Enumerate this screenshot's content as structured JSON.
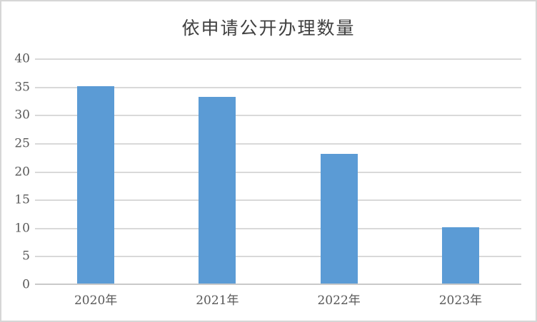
{
  "chart_data": {
    "type": "bar",
    "title": "依申请公开办理数量",
    "categories": [
      "2020年",
      "2021年",
      "2022年",
      "2023年"
    ],
    "values": [
      35,
      33,
      23,
      10
    ],
    "xlabel": "",
    "ylabel": "",
    "ylim": [
      0,
      40
    ],
    "yticks": [
      0,
      5,
      10,
      15,
      20,
      25,
      30,
      35,
      40
    ],
    "grid": "horizontal",
    "legend": "none"
  },
  "colors": {
    "bar": "#5b9bd5",
    "gridline": "#d9d9d9",
    "axis_line": "#c9c9c9",
    "tick_text": "#595959",
    "title_text": "#404040",
    "frame_border": "#d6d6d6"
  }
}
